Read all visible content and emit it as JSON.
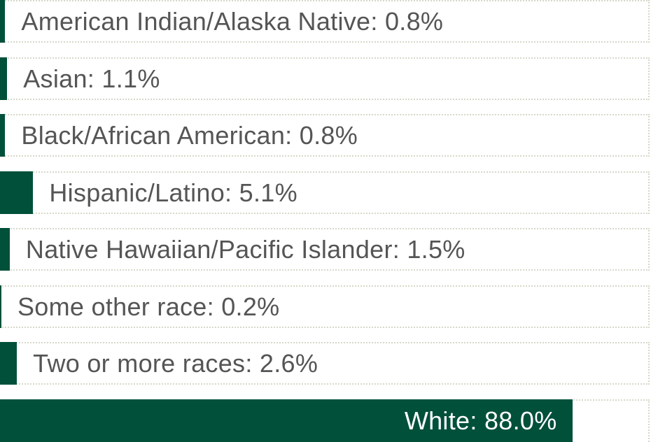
{
  "chart_data": {
    "type": "bar",
    "orientation": "horizontal",
    "bar_color": "#00503a",
    "label_color": "#555555",
    "categories": [
      "American Indian/Alaska Native",
      "Asian",
      "Black/African American",
      "Hispanic/Latino",
      "Native Hawaiian/Pacific Islander",
      "Some other race",
      "Two or more races",
      "White"
    ],
    "values": [
      0.8,
      1.1,
      0.8,
      5.1,
      1.5,
      0.2,
      2.6,
      88.0
    ],
    "labels": [
      "American Indian/Alaska Native: 0.8%",
      "Asian: 1.1%",
      "Black/African American: 0.8%",
      "Hispanic/Latino: 5.1%",
      "Native Hawaiian/Pacific Islander: 1.5%",
      "Some other race: 0.2%",
      "Two or more races: 2.6%",
      "White: 88.0%"
    ],
    "unit": "%",
    "xlim": [
      0,
      100
    ],
    "grid": false,
    "legend": "none"
  }
}
